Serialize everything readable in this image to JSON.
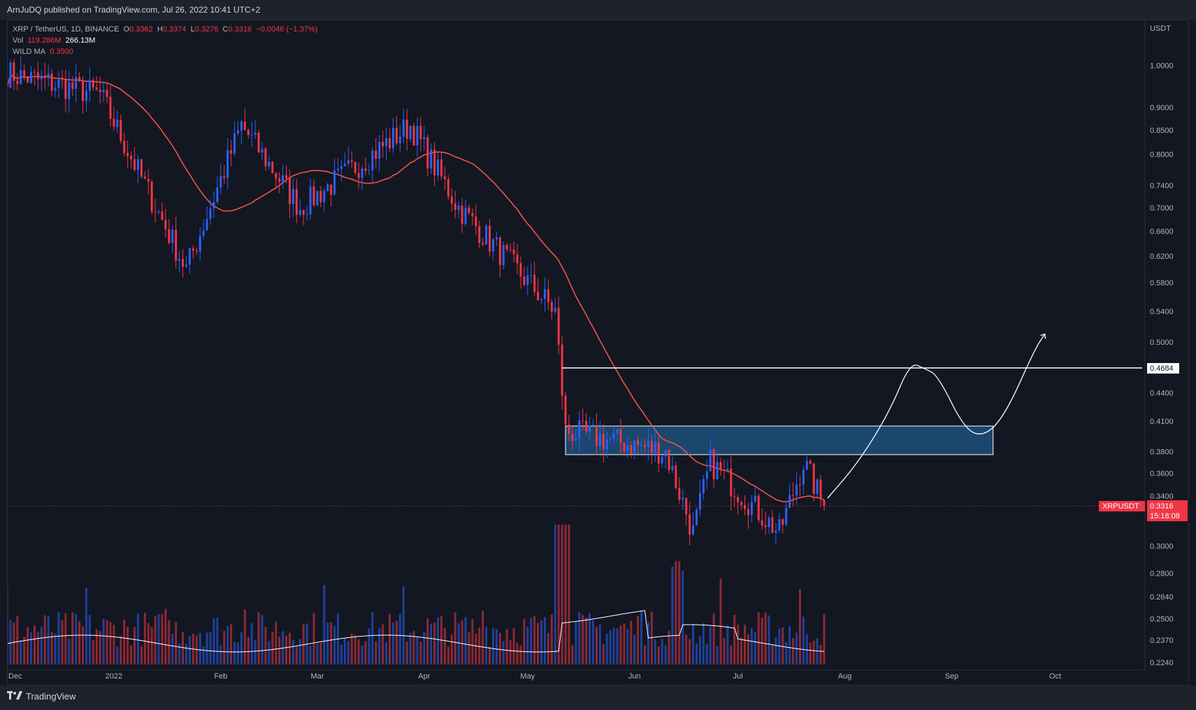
{
  "header": {
    "published_text": "ArnJuDQ published on TradingView.com, Jul 26, 2022 10:41 UTC+2"
  },
  "legend": {
    "symbol": "XRP / TetherUS, 1D, BINANCE",
    "o_label": "O",
    "o_value": "0.3362",
    "h_label": "H",
    "h_value": "0.3374",
    "l_label": "L",
    "l_value": "0.3276",
    "c_label": "C",
    "c_value": "0.3316",
    "change": "−0.0046 (−1.37%)",
    "vol_label": "Vol",
    "vol_value": "119.286M",
    "vol_ma_value": "266.13M",
    "ma_label": "WILD MA",
    "ma_value": "0.3500"
  },
  "price_axis": {
    "currency": "USDT",
    "ticks": [
      "1.0000",
      "0.9000",
      "0.8500",
      "0.8000",
      "0.7400",
      "0.7000",
      "0.6600",
      "0.6200",
      "0.5800",
      "0.5400",
      "0.5000",
      "0.4400",
      "0.4100",
      "0.3800",
      "0.3600",
      "0.3400",
      "0.3000",
      "0.2800",
      "0.2640",
      "0.2500",
      "0.2370",
      "0.2240"
    ],
    "resistance_label": "0.4684",
    "last_symbol": "XRPUSDT",
    "last_price": "0.3316",
    "countdown": "15:18:08"
  },
  "time_axis": {
    "labels": [
      "Dec",
      "2022",
      "Feb",
      "Mar",
      "Apr",
      "May",
      "Jun",
      "Jul",
      "Aug",
      "Sep",
      "Oct"
    ]
  },
  "brand": {
    "name": "TradingView"
  },
  "colors": {
    "up": "#2962ff",
    "down": "#f23645",
    "ma_red": "#f0514e",
    "ma_blue": "#2e88f3",
    "zone": "#1d4f7a",
    "bg": "#131722"
  },
  "chart_data": {
    "type": "candlestick",
    "symbol": "XRP / TetherUS",
    "interval": "1D",
    "exchange": "BINANCE",
    "scale": "log",
    "ylim": [
      0.224,
      1.06
    ],
    "x_range": [
      "2021-12-01",
      "2022-10-08"
    ],
    "last_candle": {
      "open": 0.3362,
      "high": 0.3374,
      "low": 0.3276,
      "close": 0.3316
    },
    "key_points": [
      {
        "date": "2021-12-01",
        "close": 0.98
      },
      {
        "date": "2021-12-28",
        "close": 0.93
      },
      {
        "date": "2022-01-22",
        "close": 0.6
      },
      {
        "date": "2022-02-07",
        "close": 0.86
      },
      {
        "date": "2022-02-24",
        "close": 0.7
      },
      {
        "date": "2022-03-28",
        "close": 0.86
      },
      {
        "date": "2022-04-11",
        "close": 0.7
      },
      {
        "date": "2022-05-09",
        "close": 0.54
      },
      {
        "date": "2022-05-12",
        "close": 0.4
      },
      {
        "date": "2022-06-10",
        "close": 0.38
      },
      {
        "date": "2022-06-18",
        "close": 0.31
      },
      {
        "date": "2022-06-23",
        "close": 0.37
      },
      {
        "date": "2022-07-13",
        "close": 0.31
      },
      {
        "date": "2022-07-20",
        "close": 0.37
      },
      {
        "date": "2022-07-26",
        "close": 0.3316
      }
    ],
    "resistance_line": 0.4684,
    "demand_zone": [
      0.377,
      0.405
    ],
    "indicators": [
      "Vol 119.286M / 266.13M",
      "WILD MA 0.3500"
    ]
  }
}
